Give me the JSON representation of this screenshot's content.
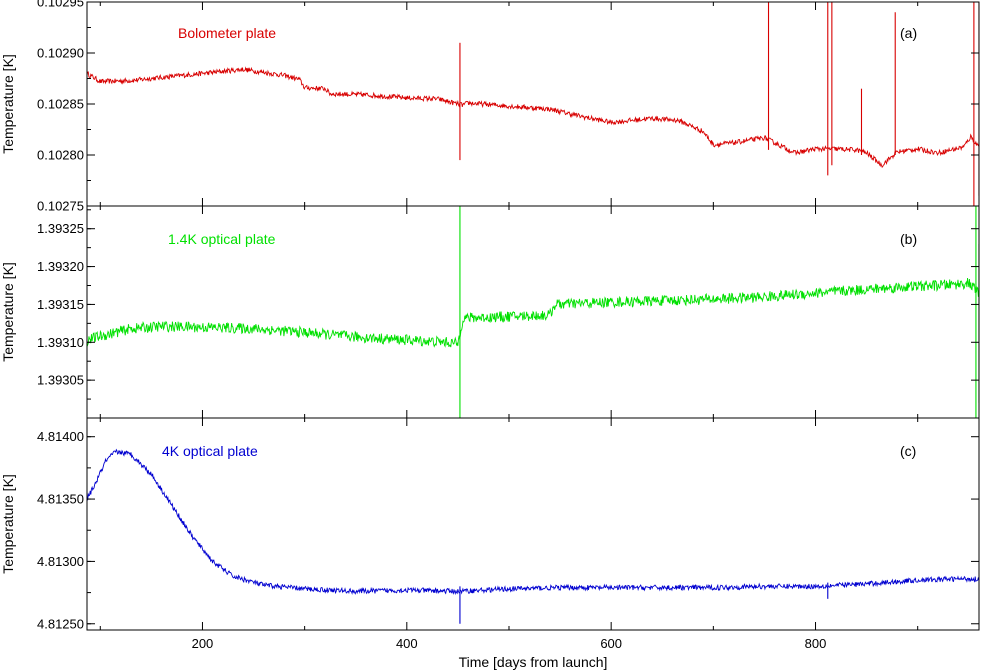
{
  "chart_data": {
    "type": "line",
    "xlabel": "Time [days from launch]",
    "xlim": [
      87,
      960
    ],
    "xticks": [
      "200",
      "400",
      "600",
      "800"
    ],
    "xtick_values": [
      200,
      400,
      600,
      800
    ],
    "panels": [
      {
        "panel_label": "(a)",
        "series_name": "Bolometer plate",
        "ylabel": "Temperature [K]",
        "ylim": [
          0.10275,
          0.10295
        ],
        "yticks": [
          "0.10275",
          "0.10280",
          "0.10285",
          "0.10290",
          "0.10295"
        ],
        "ytick_values": [
          0.10275,
          0.1028,
          0.10285,
          0.1029,
          0.10295
        ],
        "color": "#d80000",
        "points": [
          [
            87,
            0.10288
          ],
          [
            100,
            0.102872
          ],
          [
            130,
            0.102873
          ],
          [
            160,
            0.102876
          ],
          [
            200,
            0.10288
          ],
          [
            240,
            0.102884
          ],
          [
            280,
            0.102878
          ],
          [
            295,
            0.102874
          ],
          [
            300,
            0.102866
          ],
          [
            320,
            0.102865
          ],
          [
            325,
            0.10286
          ],
          [
            360,
            0.102859
          ],
          [
            400,
            0.102856
          ],
          [
            430,
            0.102855
          ],
          [
            450,
            0.10285
          ],
          [
            455,
            0.102849
          ],
          [
            460,
            0.102851
          ],
          [
            500,
            0.102848
          ],
          [
            540,
            0.102845
          ],
          [
            570,
            0.102838
          ],
          [
            580,
            0.102836
          ],
          [
            600,
            0.102832
          ],
          [
            640,
            0.102836
          ],
          [
            665,
            0.102834
          ],
          [
            675,
            0.10283
          ],
          [
            690,
            0.102823
          ],
          [
            700,
            0.10281
          ],
          [
            720,
            0.102812
          ],
          [
            750,
            0.102817
          ],
          [
            760,
            0.102812
          ],
          [
            780,
            0.102802
          ],
          [
            800,
            0.102806
          ],
          [
            820,
            0.102806
          ],
          [
            840,
            0.102805
          ],
          [
            850,
            0.102802
          ],
          [
            865,
            0.10279
          ],
          [
            880,
            0.102803
          ],
          [
            900,
            0.102806
          ],
          [
            920,
            0.102802
          ],
          [
            945,
            0.102808
          ],
          [
            952,
            0.102818
          ],
          [
            958,
            0.10281
          ]
        ],
        "spikes": [
          [
            452,
            0.10291,
            0.102795
          ],
          [
            754,
            0.10295,
            0.102805
          ],
          [
            812,
            0.10295,
            0.10278
          ],
          [
            816,
            0.10295,
            0.10279
          ],
          [
            845,
            0.102865,
            0.1028
          ],
          [
            878,
            0.10294,
            0.1028
          ],
          [
            955,
            0.10295,
            0.10275
          ],
          [
            960,
            0.10295,
            0.10276
          ]
        ]
      },
      {
        "panel_label": "(b)",
        "series_name": "1.4K optical plate",
        "ylabel": "Temperature [K]",
        "ylim": [
          1.393,
          1.39328
        ],
        "yticks": [
          "1.39305",
          "1.39310",
          "1.39315",
          "1.39320",
          "1.39325"
        ],
        "ytick_values": [
          1.39305,
          1.3931,
          1.39315,
          1.3932,
          1.39325
        ],
        "color": "#00e000",
        "points": [
          [
            87,
            1.393103
          ],
          [
            100,
            1.393108
          ],
          [
            130,
            1.393118
          ],
          [
            160,
            1.393121
          ],
          [
            200,
            1.39312
          ],
          [
            250,
            1.393118
          ],
          [
            300,
            1.393113
          ],
          [
            350,
            1.393107
          ],
          [
            400,
            1.393103
          ],
          [
            440,
            1.3931
          ],
          [
            450,
            1.393098
          ],
          [
            455,
            1.393132
          ],
          [
            500,
            1.393134
          ],
          [
            540,
            1.393136
          ],
          [
            545,
            1.39315
          ],
          [
            600,
            1.393153
          ],
          [
            650,
            1.393155
          ],
          [
            700,
            1.393157
          ],
          [
            750,
            1.39316
          ],
          [
            800,
            1.393165
          ],
          [
            850,
            1.39317
          ],
          [
            900,
            1.393174
          ],
          [
            930,
            1.393176
          ],
          [
            950,
            1.393178
          ],
          [
            960,
            1.393165
          ]
        ],
        "spikes": [
          [
            452,
            1.39328,
            1.393
          ],
          [
            957,
            1.39328,
            1.393
          ],
          [
            960,
            1.39323,
            1.39302
          ]
        ]
      },
      {
        "panel_label": "(c)",
        "series_name": "4K optical plate",
        "ylabel": "Temperature [K]",
        "ylim": [
          4.81245,
          4.81415
        ],
        "yticks": [
          "4.81250",
          "4.81300",
          "4.81350",
          "4.81400"
        ],
        "ytick_values": [
          4.8125,
          4.813,
          4.8135,
          4.814
        ],
        "color": "#0000d0",
        "points": [
          [
            87,
            4.8135
          ],
          [
            95,
            4.81362
          ],
          [
            105,
            4.8138
          ],
          [
            115,
            4.81388
          ],
          [
            130,
            4.81386
          ],
          [
            150,
            4.8137
          ],
          [
            170,
            4.81345
          ],
          [
            190,
            4.8132
          ],
          [
            210,
            4.813
          ],
          [
            230,
            4.81288
          ],
          [
            260,
            4.81281
          ],
          [
            300,
            4.81278
          ],
          [
            350,
            4.81276
          ],
          [
            400,
            4.81277
          ],
          [
            450,
            4.81276
          ],
          [
            500,
            4.81278
          ],
          [
            550,
            4.81279
          ],
          [
            600,
            4.81279
          ],
          [
            650,
            4.81279
          ],
          [
            700,
            4.81279
          ],
          [
            750,
            4.8128
          ],
          [
            800,
            4.8128
          ],
          [
            850,
            4.81282
          ],
          [
            900,
            4.81285
          ],
          [
            940,
            4.81286
          ],
          [
            960,
            4.81286
          ]
        ],
        "spikes": [
          [
            452,
            4.8128,
            4.8125
          ],
          [
            812,
            4.81283,
            4.8127
          ]
        ]
      }
    ]
  }
}
